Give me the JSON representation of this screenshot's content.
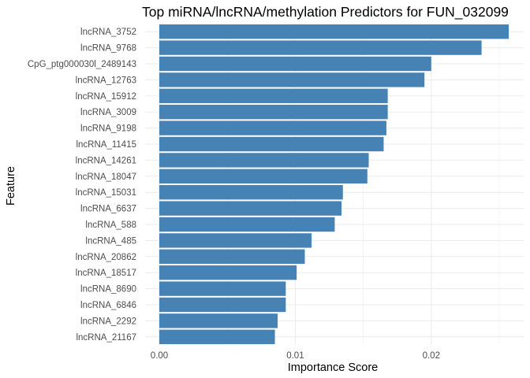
{
  "chart_data": {
    "type": "bar",
    "orientation": "horizontal",
    "title": "Top miRNA/lncRNA/methylation Predictors for FUN_032099",
    "xlabel": "Importance Score",
    "ylabel": "Feature",
    "xlim": [
      0,
      0.0265
    ],
    "x_ticks": [
      0.0,
      0.01,
      0.02
    ],
    "x_tick_labels": [
      "0.00",
      "0.01",
      "0.02"
    ],
    "grid": true,
    "legend": "none",
    "bar_color": "#4682B4",
    "categories": [
      "lncRNA_3752",
      "lncRNA_9768",
      "CpG_ptg000030l_2489143",
      "lncRNA_12763",
      "lncRNA_15912",
      "lncRNA_3009",
      "lncRNA_9198",
      "lncRNA_11415",
      "lncRNA_14261",
      "lncRNA_18047",
      "lncRNA_15031",
      "lncRNA_6637",
      "lncRNA_588",
      "lncRNA_485",
      "lncRNA_20862",
      "lncRNA_18517",
      "lncRNA_8690",
      "lncRNA_6846",
      "lncRNA_2292",
      "lncRNA_21167"
    ],
    "values": [
      0.0257,
      0.0237,
      0.02,
      0.0195,
      0.0168,
      0.0168,
      0.0167,
      0.0165,
      0.0154,
      0.0153,
      0.0135,
      0.0134,
      0.0129,
      0.0112,
      0.0107,
      0.0101,
      0.0093,
      0.0093,
      0.0087,
      0.0085
    ]
  }
}
